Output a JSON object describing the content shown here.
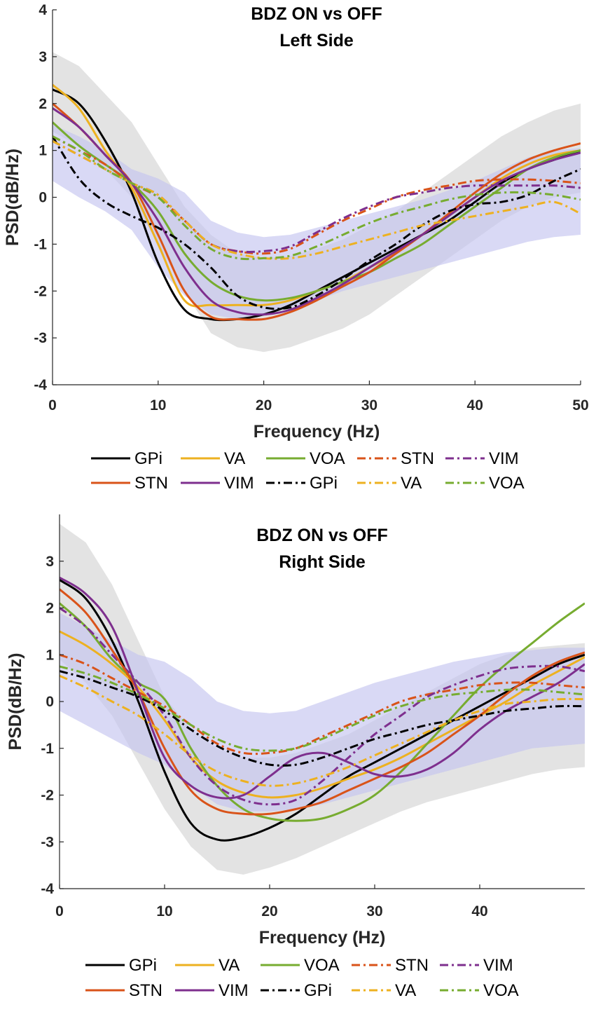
{
  "chart_data": [
    {
      "type": "line",
      "title": "BDZ ON vs OFF",
      "subtitle": "Left Side",
      "xlabel": "Frequency (Hz)",
      "ylabel": "PSD(dB/Hz)",
      "xlim": [
        0,
        50
      ],
      "ylim": [
        -4,
        4
      ],
      "xticks": [
        "0",
        "10",
        "20",
        "30",
        "40",
        "50"
      ],
      "yticks": [
        "-4",
        "-3",
        "-2",
        "-1",
        "0",
        "1",
        "2",
        "3",
        "4"
      ],
      "x": [
        0,
        2.5,
        5,
        7.5,
        10,
        12.5,
        15,
        17.5,
        20,
        22.5,
        25,
        27.5,
        30,
        32.5,
        35,
        37.5,
        40,
        42.5,
        45,
        47.5,
        50
      ],
      "bands": [
        {
          "name": "OFF spread",
          "color": "#d9d9d9",
          "upper": [
            3.1,
            2.8,
            2.2,
            1.6,
            0.7,
            -0.2,
            -0.8,
            -1.2,
            -1.3,
            -1.25,
            -1.1,
            -0.9,
            -0.6,
            -0.3,
            0.1,
            0.5,
            0.9,
            1.3,
            1.6,
            1.85,
            2.0
          ],
          "lower": [
            1.4,
            1.1,
            0.6,
            0.0,
            -1.0,
            -2.0,
            -2.9,
            -3.2,
            -3.3,
            -3.2,
            -3.0,
            -2.8,
            -2.5,
            -2.1,
            -1.7,
            -1.3,
            -0.9,
            -0.5,
            -0.2,
            0.0,
            0.1
          ]
        },
        {
          "name": "ON spread",
          "color": "#c5c5ef",
          "upper": [
            1.55,
            1.3,
            1.0,
            0.6,
            0.4,
            0.1,
            -0.5,
            -0.75,
            -0.85,
            -0.8,
            -0.65,
            -0.5,
            -0.35,
            -0.2,
            -0.05,
            0.15,
            0.35,
            0.6,
            0.85,
            1.0,
            1.05
          ],
          "lower": [
            0.35,
            0.0,
            -0.3,
            -0.7,
            -1.5,
            -2.1,
            -2.5,
            -2.6,
            -2.5,
            -2.35,
            -2.2,
            -2.0,
            -1.85,
            -1.7,
            -1.55,
            -1.4,
            -1.25,
            -1.1,
            -0.95,
            -0.85,
            -0.8
          ]
        }
      ],
      "series": [
        {
          "name": "GPi",
          "color": "#000000",
          "dash": "solid",
          "values": [
            2.3,
            2.0,
            1.2,
            0.1,
            -1.4,
            -2.4,
            -2.6,
            -2.6,
            -2.5,
            -2.3,
            -2.0,
            -1.7,
            -1.4,
            -1.1,
            -0.8,
            -0.5,
            -0.1,
            0.3,
            0.6,
            0.8,
            1.0
          ]
        },
        {
          "name": "VA",
          "color": "#edb120",
          "dash": "solid",
          "values": [
            2.4,
            1.9,
            1.0,
            0.2,
            -1.0,
            -2.2,
            -2.3,
            -2.3,
            -2.3,
            -2.2,
            -2.0,
            -1.8,
            -1.5,
            -1.2,
            -0.8,
            -0.4,
            0.0,
            0.4,
            0.7,
            0.9,
            1.0
          ]
        },
        {
          "name": "VOA",
          "color": "#77ac30",
          "dash": "solid",
          "values": [
            1.6,
            1.1,
            0.7,
            0.3,
            -0.3,
            -1.2,
            -1.8,
            -2.1,
            -2.2,
            -2.15,
            -2.0,
            -1.8,
            -1.6,
            -1.3,
            -1.0,
            -0.6,
            -0.2,
            0.2,
            0.6,
            0.85,
            1.0
          ]
        },
        {
          "name": "STN",
          "color": "#d95319",
          "dash": "dashdot",
          "values": [
            1.3,
            1.0,
            0.7,
            0.3,
            0.0,
            -0.5,
            -1.0,
            -1.15,
            -1.2,
            -1.1,
            -0.8,
            -0.5,
            -0.25,
            0.0,
            0.15,
            0.25,
            0.35,
            0.38,
            0.38,
            0.35,
            0.3
          ]
        },
        {
          "name": "VIM",
          "color": "#7e2f8e",
          "dash": "dashdot",
          "values": [
            1.2,
            0.9,
            0.6,
            0.3,
            0.05,
            -0.5,
            -1.0,
            -1.15,
            -1.15,
            -1.05,
            -0.75,
            -0.45,
            -0.2,
            0.0,
            0.1,
            0.2,
            0.25,
            0.25,
            0.25,
            0.25,
            0.2
          ]
        },
        {
          "name": "STN",
          "color": "#d95319",
          "dash": "solid",
          "values": [
            2.0,
            1.5,
            0.9,
            0.3,
            -0.8,
            -2.0,
            -2.55,
            -2.6,
            -2.6,
            -2.45,
            -2.2,
            -1.9,
            -1.6,
            -1.2,
            -0.8,
            -0.35,
            0.1,
            0.5,
            0.8,
            1.0,
            1.15
          ]
        },
        {
          "name": "VIM",
          "color": "#7e2f8e",
          "dash": "solid",
          "values": [
            1.9,
            1.5,
            0.9,
            0.3,
            -0.5,
            -1.5,
            -2.2,
            -2.45,
            -2.5,
            -2.4,
            -2.15,
            -1.85,
            -1.5,
            -1.15,
            -0.8,
            -0.4,
            0.0,
            0.35,
            0.6,
            0.8,
            0.95
          ]
        },
        {
          "name": "GPi",
          "color": "#000000",
          "dash": "dashdot",
          "values": [
            1.3,
            0.4,
            -0.1,
            -0.4,
            -0.65,
            -1.0,
            -1.5,
            -2.1,
            -2.35,
            -2.35,
            -2.1,
            -1.75,
            -1.35,
            -1.0,
            -0.6,
            -0.3,
            -0.15,
            -0.1,
            0.05,
            0.35,
            0.6
          ]
        },
        {
          "name": "VA",
          "color": "#edb120",
          "dash": "dashdot",
          "values": [
            1.2,
            0.9,
            0.6,
            0.3,
            0.05,
            -0.5,
            -1.0,
            -1.2,
            -1.3,
            -1.3,
            -1.2,
            -1.05,
            -0.9,
            -0.75,
            -0.6,
            -0.5,
            -0.4,
            -0.3,
            -0.2,
            -0.1,
            -0.35
          ]
        },
        {
          "name": "VOA",
          "color": "#77ac30",
          "dash": "dashdot",
          "values": [
            1.3,
            1.0,
            0.6,
            0.3,
            0.0,
            -0.6,
            -1.1,
            -1.3,
            -1.3,
            -1.25,
            -1.05,
            -0.8,
            -0.55,
            -0.35,
            -0.2,
            -0.05,
            0.05,
            0.1,
            0.1,
            0.05,
            -0.05
          ]
        }
      ],
      "legend_position": "bottom"
    },
    {
      "type": "line",
      "title": "BDZ ON vs OFF",
      "subtitle": "Right Side",
      "xlabel": "Frequency (Hz)",
      "ylabel": "PSD(dB/Hz)",
      "xlim": [
        0,
        50
      ],
      "ylim": [
        -4,
        4
      ],
      "xticks": [
        "0",
        "10",
        "20",
        "30",
        "40"
      ],
      "yticks": [
        "-4",
        "-3",
        "-2",
        "-1",
        "0",
        "1",
        "2",
        "3"
      ],
      "x": [
        0,
        2.5,
        5,
        7.5,
        10,
        12.5,
        15,
        17.5,
        20,
        22.5,
        25,
        27.5,
        30,
        32.5,
        35,
        37.5,
        40,
        42.5,
        45,
        47.5,
        50
      ],
      "bands": [
        {
          "name": "OFF spread",
          "color": "#d9d9d9",
          "upper": [
            3.8,
            3.4,
            2.5,
            1.3,
            0.1,
            -0.6,
            -1.0,
            -1.2,
            -1.2,
            -1.1,
            -0.9,
            -0.7,
            -0.4,
            -0.1,
            0.2,
            0.5,
            0.8,
            1.0,
            1.15,
            1.2,
            1.25
          ]
        },
        {
          "name": "ON spread",
          "color": "#c5c5ef",
          "upper": [
            1.9,
            1.6,
            1.3,
            1.0,
            0.85,
            0.5,
            0.0,
            -0.2,
            -0.25,
            -0.2,
            0.0,
            0.2,
            0.4,
            0.55,
            0.7,
            0.85,
            0.95,
            1.05,
            1.1,
            1.15,
            1.15
          ],
          "lower": [
            -0.2,
            -0.5,
            -0.8,
            -1.1,
            -1.35,
            -1.8,
            -2.2,
            -2.35,
            -2.35,
            -2.3,
            -2.2,
            -2.05,
            -1.9,
            -1.75,
            -1.6,
            -1.45,
            -1.3,
            -1.15,
            -1.0,
            -0.95,
            -0.9
          ]
        }
      ],
      "band_lower_off": [
        0.9,
        0.4,
        -0.3,
        -1.3,
        -2.3,
        -3.1,
        -3.6,
        -3.7,
        -3.55,
        -3.35,
        -3.1,
        -2.85,
        -2.6,
        -2.35,
        -2.15,
        -2.0,
        -1.85,
        -1.7,
        -1.55,
        -1.45,
        -1.4
      ],
      "series": [
        {
          "name": "GPi",
          "color": "#000000",
          "dash": "solid",
          "values": [
            2.6,
            2.2,
            1.3,
            0.0,
            -1.5,
            -2.6,
            -2.95,
            -2.9,
            -2.7,
            -2.4,
            -2.0,
            -1.6,
            -1.3,
            -1.0,
            -0.7,
            -0.4,
            -0.1,
            0.2,
            0.5,
            0.8,
            1.0
          ]
        },
        {
          "name": "VA",
          "color": "#edb120",
          "dash": "solid",
          "values": [
            1.5,
            1.2,
            0.8,
            0.3,
            -0.4,
            -1.2,
            -1.7,
            -1.95,
            -2.05,
            -2.0,
            -1.85,
            -1.65,
            -1.45,
            -1.2,
            -0.9,
            -0.6,
            -0.3,
            0.0,
            0.35,
            0.65,
            0.95
          ]
        },
        {
          "name": "VOA",
          "color": "#77ac30",
          "dash": "solid",
          "values": [
            2.1,
            1.6,
            0.9,
            0.4,
            0.05,
            -1.0,
            -1.8,
            -2.3,
            -2.5,
            -2.55,
            -2.5,
            -2.3,
            -2.0,
            -1.5,
            -0.9,
            -0.3,
            0.3,
            0.8,
            1.25,
            1.7,
            2.1
          ]
        },
        {
          "name": "STN",
          "color": "#d95319",
          "dash": "dashdot",
          "values": [
            1.0,
            0.8,
            0.5,
            0.2,
            -0.1,
            -0.5,
            -0.9,
            -1.1,
            -1.1,
            -1.0,
            -0.75,
            -0.5,
            -0.25,
            0.0,
            0.15,
            0.25,
            0.35,
            0.4,
            0.4,
            0.35,
            0.3
          ]
        },
        {
          "name": "VIM",
          "color": "#7e2f8e",
          "dash": "dashdot",
          "values": [
            2.0,
            1.6,
            1.0,
            0.4,
            -0.3,
            -1.2,
            -1.8,
            -2.1,
            -2.2,
            -2.1,
            -1.7,
            -1.2,
            -0.7,
            -0.3,
            0.1,
            0.35,
            0.55,
            0.7,
            0.75,
            0.75,
            0.65
          ]
        },
        {
          "name": "STN",
          "color": "#d95319",
          "dash": "solid",
          "values": [
            2.4,
            1.9,
            1.1,
            0.2,
            -1.0,
            -1.9,
            -2.3,
            -2.4,
            -2.4,
            -2.3,
            -2.15,
            -1.9,
            -1.65,
            -1.4,
            -1.1,
            -0.7,
            -0.3,
            0.15,
            0.55,
            0.85,
            1.05
          ]
        },
        {
          "name": "VIM",
          "color": "#7e2f8e",
          "dash": "solid",
          "values": [
            2.65,
            2.3,
            1.6,
            0.2,
            -1.2,
            -1.8,
            -2.05,
            -2.0,
            -1.6,
            -1.2,
            -1.1,
            -1.3,
            -1.55,
            -1.6,
            -1.45,
            -1.1,
            -0.6,
            -0.2,
            0.1,
            0.4,
            0.8
          ]
        },
        {
          "name": "GPi",
          "color": "#000000",
          "dash": "dashdot",
          "values": [
            0.65,
            0.5,
            0.3,
            0.1,
            -0.2,
            -0.6,
            -0.95,
            -1.2,
            -1.35,
            -1.35,
            -1.2,
            -1.0,
            -0.8,
            -0.65,
            -0.5,
            -0.4,
            -0.3,
            -0.2,
            -0.15,
            -0.1,
            -0.1
          ]
        },
        {
          "name": "VA",
          "color": "#edb120",
          "dash": "dashdot",
          "values": [
            0.55,
            0.3,
            0.0,
            -0.3,
            -0.7,
            -1.15,
            -1.5,
            -1.7,
            -1.8,
            -1.75,
            -1.6,
            -1.4,
            -1.15,
            -0.9,
            -0.65,
            -0.4,
            -0.2,
            -0.05,
            0.0,
            0.05,
            0.05
          ]
        },
        {
          "name": "VOA",
          "color": "#77ac30",
          "dash": "dashdot",
          "values": [
            0.75,
            0.6,
            0.4,
            0.15,
            -0.15,
            -0.5,
            -0.8,
            -1.0,
            -1.05,
            -1.0,
            -0.8,
            -0.55,
            -0.3,
            -0.1,
            0.05,
            0.15,
            0.2,
            0.25,
            0.25,
            0.2,
            0.15
          ]
        }
      ],
      "legend_position": "bottom"
    }
  ]
}
